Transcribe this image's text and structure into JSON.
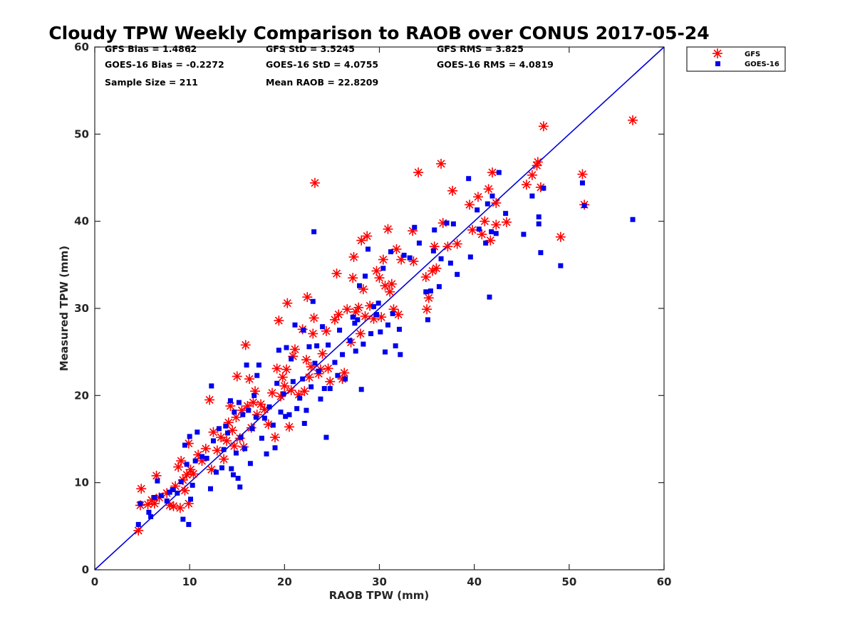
{
  "chart_data": {
    "type": "scatter",
    "title": "Cloudy TPW Weekly Comparison to RAOB over CONUS 2017-05-24",
    "xlabel": "RAOB TPW (mm)",
    "ylabel": "Measured TPW (mm)",
    "xlim": [
      0,
      60
    ],
    "ylim": [
      0,
      60
    ],
    "x_ticks": [
      "0",
      "10",
      "20",
      "30",
      "40",
      "50",
      "60"
    ],
    "y_ticks": [
      "0",
      "10",
      "20",
      "30",
      "40",
      "50",
      "60"
    ],
    "grid": false,
    "legend_position": "top-right, outside plot",
    "one_to_one_line": {
      "from": [
        0,
        0
      ],
      "to": [
        60,
        60
      ],
      "color": "#0000dd"
    },
    "stats": [
      {
        "label": "GFS Bias = 1.4862"
      },
      {
        "label": "GFS StD = 3.5245"
      },
      {
        "label": "GFS RMS = 3.825"
      },
      {
        "label": "GOES-16 Bias = -0.2272"
      },
      {
        "label": "GOES-16 StD = 4.0755"
      },
      {
        "label": "GOES-16 RMS = 4.0819"
      },
      {
        "label": "Sample Size = 211"
      },
      {
        "label": "Mean RAOB = 22.8209"
      }
    ],
    "series": [
      {
        "name": "GFS",
        "marker": "asterisk",
        "color": "#ff0000",
        "points": [
          [
            4.6,
            4.5
          ],
          [
            4.8,
            7.4
          ],
          [
            4.9,
            9.3
          ],
          [
            5.6,
            7.5
          ],
          [
            6.0,
            8.0
          ],
          [
            6.3,
            7.6
          ],
          [
            6.5,
            10.8
          ],
          [
            6.8,
            8.3
          ],
          [
            7.6,
            8.8
          ],
          [
            7.9,
            7.4
          ],
          [
            8.3,
            7.3
          ],
          [
            8.5,
            9.6
          ],
          [
            8.8,
            11.8
          ],
          [
            9.0,
            7.1
          ],
          [
            9.1,
            12.5
          ],
          [
            9.3,
            10.3
          ],
          [
            9.5,
            9.1
          ],
          [
            9.7,
            10.9
          ],
          [
            9.9,
            7.6
          ],
          [
            9.9,
            14.5
          ],
          [
            10.1,
            11.5
          ],
          [
            10.4,
            11.0
          ],
          [
            10.9,
            13.2
          ],
          [
            11.3,
            12.5
          ],
          [
            11.7,
            13.9
          ],
          [
            12.1,
            19.5
          ],
          [
            12.3,
            11.5
          ],
          [
            12.5,
            15.8
          ],
          [
            12.9,
            13.7
          ],
          [
            13.3,
            15.2
          ],
          [
            13.6,
            12.7
          ],
          [
            13.9,
            14.8
          ],
          [
            14.1,
            16.9
          ],
          [
            14.3,
            18.8
          ],
          [
            14.5,
            16.0
          ],
          [
            14.7,
            14.2
          ],
          [
            14.9,
            17.5
          ],
          [
            15.0,
            22.2
          ],
          [
            15.3,
            15.1
          ],
          [
            15.5,
            18.3
          ],
          [
            15.7,
            14.1
          ],
          [
            15.9,
            25.8
          ],
          [
            16.1,
            18.8
          ],
          [
            16.3,
            21.9
          ],
          [
            16.5,
            16.3
          ],
          [
            16.7,
            19.2
          ],
          [
            16.9,
            20.5
          ],
          [
            17.1,
            17.8
          ],
          [
            17.5,
            19.0
          ],
          [
            17.9,
            18.4
          ],
          [
            18.3,
            16.7
          ],
          [
            18.7,
            20.3
          ],
          [
            19.0,
            15.2
          ],
          [
            19.2,
            23.1
          ],
          [
            19.4,
            28.6
          ],
          [
            19.6,
            19.9
          ],
          [
            19.8,
            22.1
          ],
          [
            20.0,
            21.1
          ],
          [
            20.2,
            23.0
          ],
          [
            20.3,
            30.6
          ],
          [
            20.5,
            16.4
          ],
          [
            20.7,
            20.6
          ],
          [
            20.9,
            24.5
          ],
          [
            21.1,
            25.3
          ],
          [
            21.5,
            20.1
          ],
          [
            21.9,
            27.6
          ],
          [
            22.1,
            20.5
          ],
          [
            22.3,
            24.1
          ],
          [
            22.4,
            31.3
          ],
          [
            22.6,
            22.1
          ],
          [
            22.8,
            23.3
          ],
          [
            23.0,
            27.1
          ],
          [
            23.1,
            28.9
          ],
          [
            23.2,
            44.4
          ],
          [
            23.6,
            22.5
          ],
          [
            23.8,
            23.0
          ],
          [
            24.0,
            24.8
          ],
          [
            24.4,
            27.4
          ],
          [
            24.6,
            23.1
          ],
          [
            24.8,
            21.6
          ],
          [
            25.3,
            28.7
          ],
          [
            25.5,
            34.0
          ],
          [
            25.7,
            29.3
          ],
          [
            26.1,
            21.9
          ],
          [
            26.3,
            22.6
          ],
          [
            26.6,
            29.9
          ],
          [
            27.0,
            26.1
          ],
          [
            27.2,
            33.5
          ],
          [
            27.3,
            35.9
          ],
          [
            27.5,
            29.6
          ],
          [
            27.8,
            30.1
          ],
          [
            28.0,
            27.1
          ],
          [
            28.1,
            37.8
          ],
          [
            28.3,
            32.2
          ],
          [
            28.5,
            29.1
          ],
          [
            28.7,
            38.3
          ],
          [
            29.0,
            30.3
          ],
          [
            29.4,
            28.8
          ],
          [
            29.7,
            34.3
          ],
          [
            30.0,
            33.5
          ],
          [
            30.2,
            29.0
          ],
          [
            30.4,
            35.6
          ],
          [
            30.6,
            32.6
          ],
          [
            30.9,
            39.1
          ],
          [
            31.1,
            31.9
          ],
          [
            31.3,
            32.8
          ],
          [
            31.5,
            29.9
          ],
          [
            31.8,
            36.8
          ],
          [
            32.0,
            29.3
          ],
          [
            32.3,
            35.6
          ],
          [
            33.5,
            38.9
          ],
          [
            33.6,
            35.4
          ],
          [
            34.1,
            45.6
          ],
          [
            34.9,
            33.6
          ],
          [
            35.0,
            29.9
          ],
          [
            35.2,
            31.2
          ],
          [
            35.6,
            34.3
          ],
          [
            35.8,
            37.1
          ],
          [
            36.0,
            34.6
          ],
          [
            36.5,
            46.6
          ],
          [
            36.7,
            39.8
          ],
          [
            37.2,
            37.1
          ],
          [
            37.7,
            43.5
          ],
          [
            38.2,
            37.4
          ],
          [
            39.5,
            41.9
          ],
          [
            39.8,
            39.0
          ],
          [
            40.4,
            42.8
          ],
          [
            40.8,
            38.5
          ],
          [
            41.1,
            40.0
          ],
          [
            41.5,
            43.7
          ],
          [
            41.7,
            37.8
          ],
          [
            41.9,
            45.6
          ],
          [
            42.3,
            39.6
          ],
          [
            42.3,
            42.1
          ],
          [
            43.4,
            39.9
          ],
          [
            45.5,
            44.2
          ],
          [
            46.1,
            45.3
          ],
          [
            46.6,
            46.4
          ],
          [
            46.7,
            46.8
          ],
          [
            47.0,
            43.9
          ],
          [
            47.3,
            50.9
          ],
          [
            49.1,
            38.2
          ],
          [
            51.4,
            45.4
          ],
          [
            51.6,
            41.9
          ],
          [
            56.7,
            51.6
          ]
        ]
      },
      {
        "name": "GOES-16",
        "marker": "square",
        "color": "#0000ee",
        "points": [
          [
            4.6,
            5.2
          ],
          [
            4.8,
            7.6
          ],
          [
            5.7,
            6.6
          ],
          [
            5.9,
            6.1
          ],
          [
            6.3,
            8.3
          ],
          [
            6.6,
            10.2
          ],
          [
            7.0,
            8.5
          ],
          [
            7.6,
            7.9
          ],
          [
            7.9,
            8.9
          ],
          [
            8.2,
            9.2
          ],
          [
            8.7,
            8.8
          ],
          [
            9.1,
            10.1
          ],
          [
            9.3,
            5.8
          ],
          [
            9.5,
            14.3
          ],
          [
            9.7,
            12.1
          ],
          [
            9.9,
            5.2
          ],
          [
            10.0,
            15.3
          ],
          [
            10.1,
            8.1
          ],
          [
            10.3,
            9.7
          ],
          [
            10.6,
            12.5
          ],
          [
            10.8,
            15.8
          ],
          [
            11.3,
            13.0
          ],
          [
            11.8,
            12.8
          ],
          [
            12.2,
            9.3
          ],
          [
            12.3,
            21.1
          ],
          [
            12.5,
            14.8
          ],
          [
            12.8,
            11.2
          ],
          [
            13.1,
            16.2
          ],
          [
            13.4,
            11.7
          ],
          [
            13.6,
            13.8
          ],
          [
            13.8,
            16.5
          ],
          [
            14.0,
            15.7
          ],
          [
            14.3,
            19.4
          ],
          [
            14.4,
            11.6
          ],
          [
            14.6,
            10.9
          ],
          [
            14.7,
            18.1
          ],
          [
            14.9,
            13.4
          ],
          [
            15.1,
            10.5
          ],
          [
            15.2,
            19.2
          ],
          [
            15.3,
            9.5
          ],
          [
            15.4,
            15.2
          ],
          [
            15.6,
            17.8
          ],
          [
            15.8,
            13.9
          ],
          [
            16.0,
            23.5
          ],
          [
            16.2,
            18.3
          ],
          [
            16.4,
            12.2
          ],
          [
            16.6,
            16.2
          ],
          [
            16.8,
            20.0
          ],
          [
            17.0,
            17.5
          ],
          [
            17.1,
            22.3
          ],
          [
            17.3,
            23.5
          ],
          [
            17.6,
            15.1
          ],
          [
            17.9,
            17.4
          ],
          [
            18.1,
            13.3
          ],
          [
            18.4,
            18.7
          ],
          [
            18.8,
            16.6
          ],
          [
            19.0,
            14.0
          ],
          [
            19.2,
            21.4
          ],
          [
            19.4,
            25.2
          ],
          [
            19.6,
            18.1
          ],
          [
            19.9,
            20.2
          ],
          [
            20.1,
            17.6
          ],
          [
            20.2,
            25.5
          ],
          [
            20.5,
            17.8
          ],
          [
            20.7,
            24.2
          ],
          [
            20.9,
            21.6
          ],
          [
            21.1,
            28.1
          ],
          [
            21.3,
            18.5
          ],
          [
            21.6,
            19.7
          ],
          [
            21.9,
            21.9
          ],
          [
            22.0,
            27.5
          ],
          [
            22.1,
            16.8
          ],
          [
            22.3,
            18.3
          ],
          [
            22.6,
            25.6
          ],
          [
            22.8,
            21.0
          ],
          [
            23.0,
            30.8
          ],
          [
            23.1,
            38.8
          ],
          [
            23.2,
            23.7
          ],
          [
            23.4,
            25.7
          ],
          [
            23.6,
            22.8
          ],
          [
            23.8,
            19.6
          ],
          [
            24.0,
            27.9
          ],
          [
            24.2,
            20.8
          ],
          [
            24.4,
            15.2
          ],
          [
            24.6,
            25.8
          ],
          [
            24.8,
            20.8
          ],
          [
            25.3,
            23.8
          ],
          [
            25.6,
            22.3
          ],
          [
            25.8,
            27.5
          ],
          [
            26.1,
            24.7
          ],
          [
            26.4,
            21.9
          ],
          [
            26.9,
            26.3
          ],
          [
            27.2,
            29.0
          ],
          [
            27.4,
            28.3
          ],
          [
            27.5,
            25.1
          ],
          [
            27.7,
            28.7
          ],
          [
            27.9,
            32.6
          ],
          [
            28.1,
            20.7
          ],
          [
            28.3,
            25.9
          ],
          [
            28.5,
            33.7
          ],
          [
            28.8,
            36.8
          ],
          [
            29.1,
            27.1
          ],
          [
            29.4,
            30.2
          ],
          [
            29.7,
            29.3
          ],
          [
            29.9,
            30.6
          ],
          [
            30.1,
            27.3
          ],
          [
            30.4,
            34.6
          ],
          [
            30.6,
            25.0
          ],
          [
            30.9,
            28.1
          ],
          [
            31.2,
            36.5
          ],
          [
            31.4,
            29.4
          ],
          [
            31.7,
            25.7
          ],
          [
            32.1,
            27.6
          ],
          [
            32.2,
            24.7
          ],
          [
            32.6,
            36.1
          ],
          [
            33.2,
            35.8
          ],
          [
            33.7,
            39.3
          ],
          [
            34.2,
            37.5
          ],
          [
            34.9,
            31.9
          ],
          [
            35.1,
            28.7
          ],
          [
            35.4,
            32.0
          ],
          [
            35.7,
            36.6
          ],
          [
            35.8,
            39.0
          ],
          [
            36.3,
            32.5
          ],
          [
            36.5,
            35.7
          ],
          [
            37.1,
            39.8
          ],
          [
            37.5,
            35.2
          ],
          [
            37.8,
            39.7
          ],
          [
            38.2,
            33.9
          ],
          [
            39.4,
            44.9
          ],
          [
            39.6,
            35.9
          ],
          [
            40.3,
            41.3
          ],
          [
            40.5,
            39.1
          ],
          [
            41.2,
            37.5
          ],
          [
            41.4,
            42.0
          ],
          [
            41.6,
            31.3
          ],
          [
            41.8,
            38.8
          ],
          [
            41.9,
            42.9
          ],
          [
            42.3,
            38.6
          ],
          [
            42.6,
            45.6
          ],
          [
            43.3,
            40.9
          ],
          [
            45.2,
            38.5
          ],
          [
            46.1,
            42.9
          ],
          [
            46.8,
            40.5
          ],
          [
            46.8,
            39.7
          ],
          [
            47.0,
            36.4
          ],
          [
            47.3,
            43.8
          ],
          [
            49.1,
            34.9
          ],
          [
            51.4,
            44.4
          ],
          [
            51.6,
            41.8
          ],
          [
            56.7,
            40.2
          ]
        ]
      }
    ]
  }
}
